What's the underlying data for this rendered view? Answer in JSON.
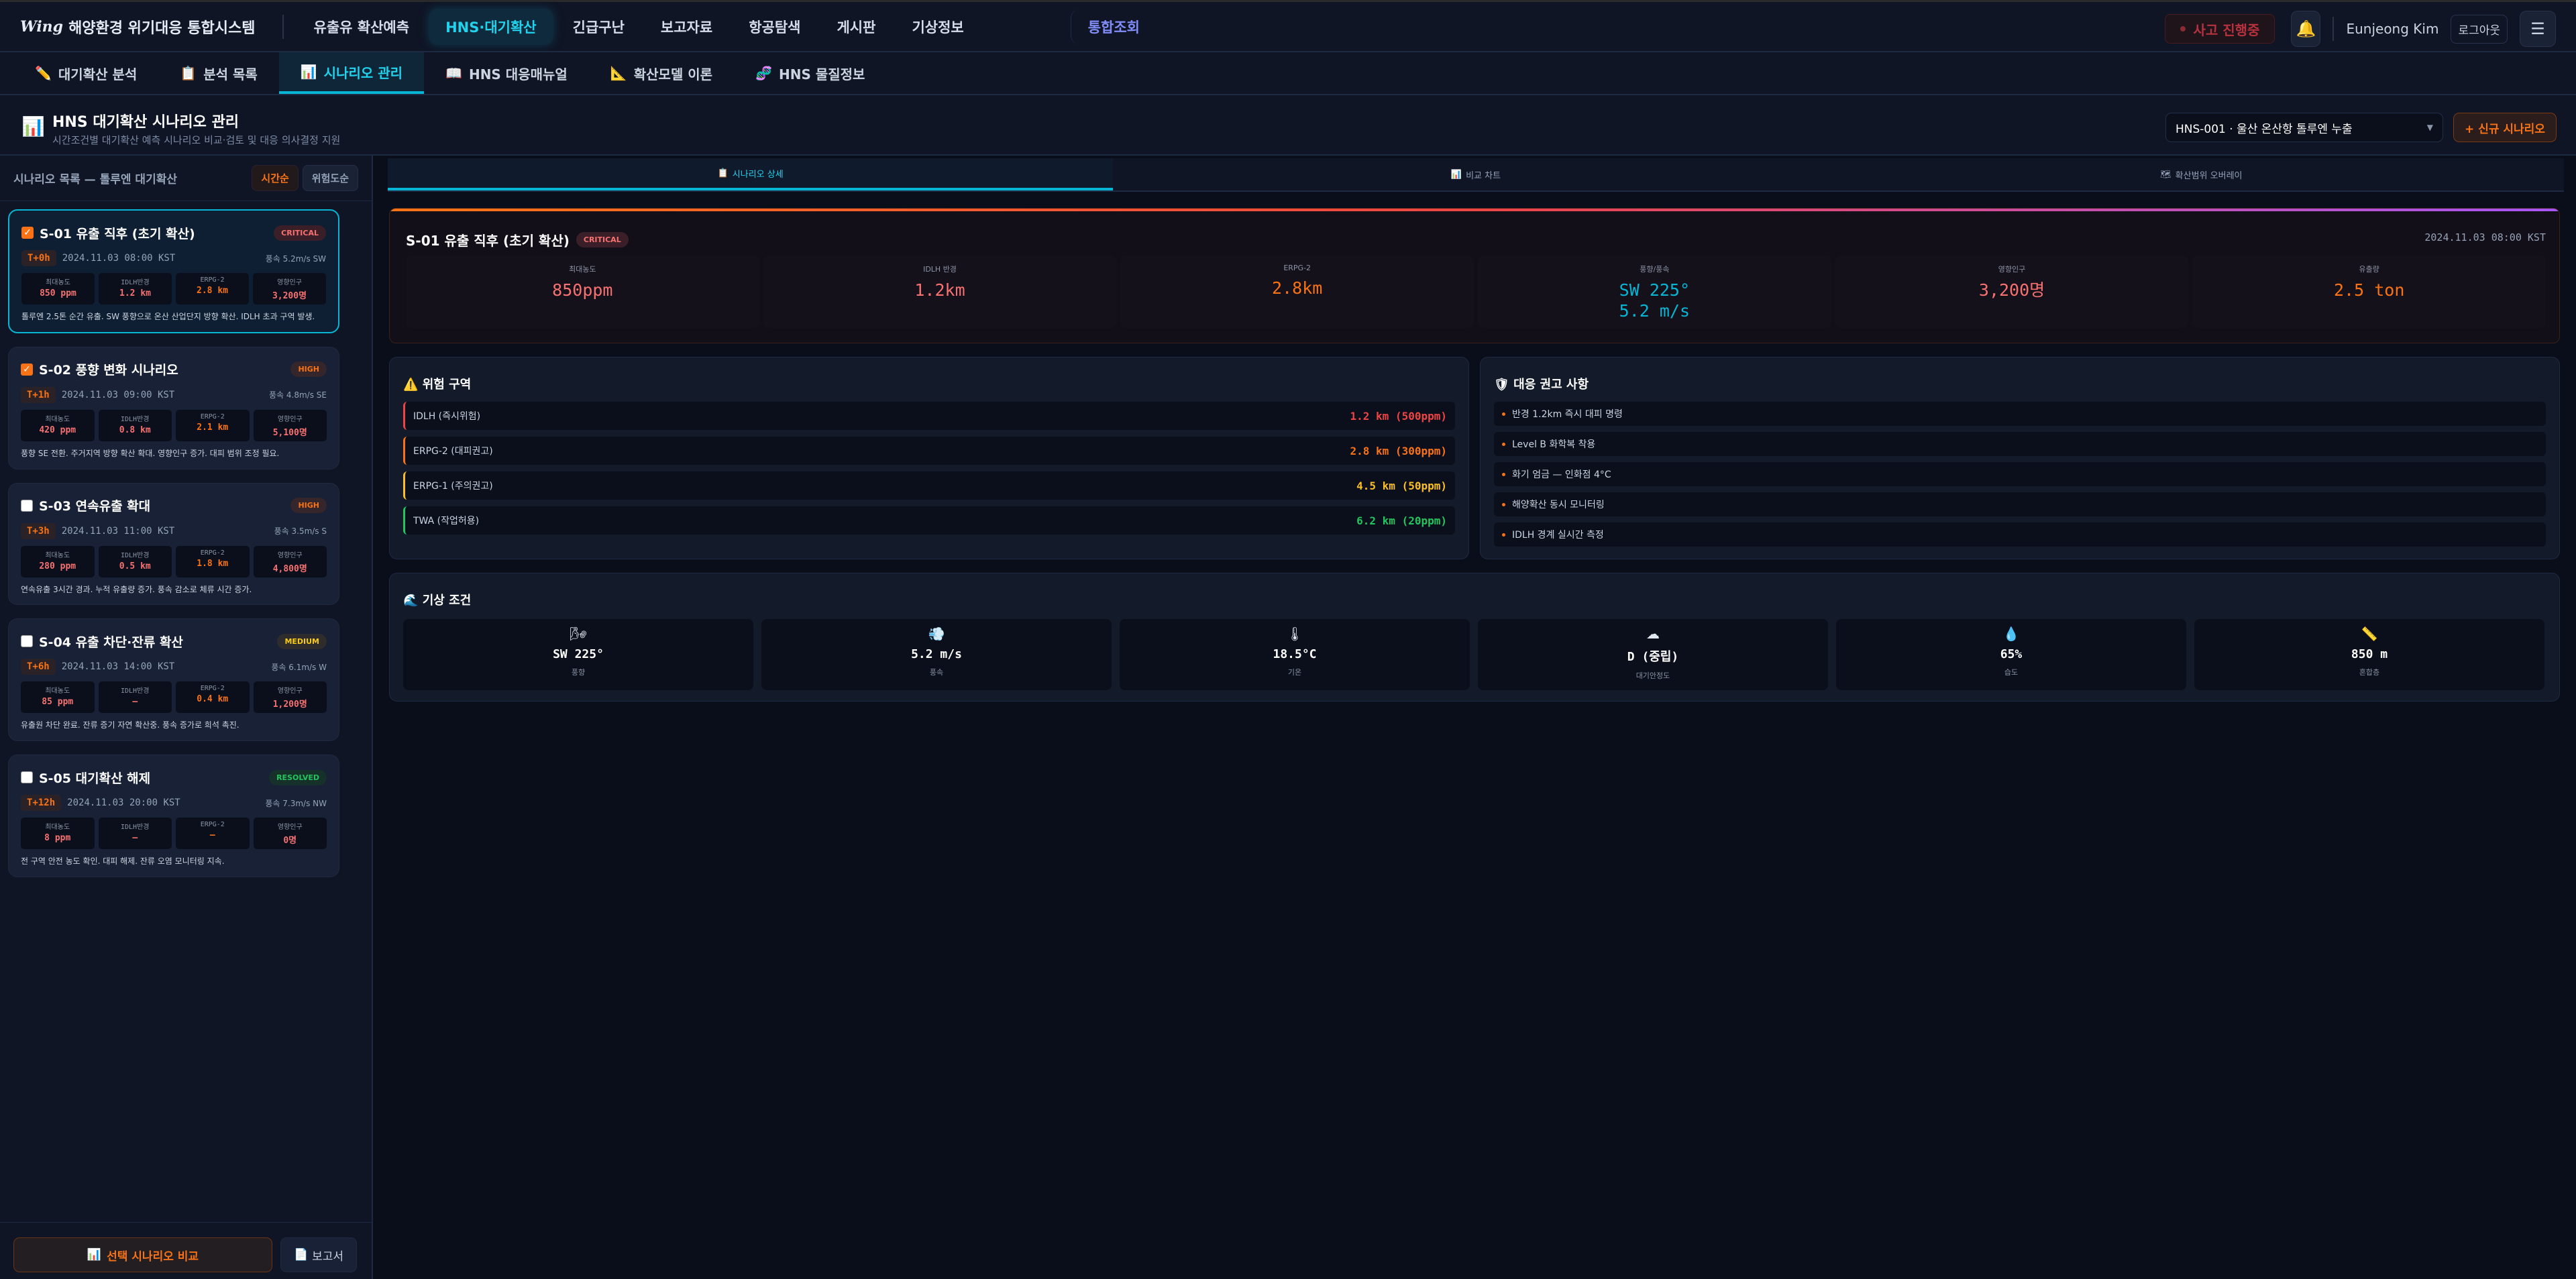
{
  "header": {
    "logo_mark": "Wing",
    "title": "해양환경 위기대응 통합시스템",
    "nav": [
      "유출유 확산예측",
      "HNS·대기확산",
      "긴급구난",
      "보고자료",
      "항공탐색",
      "게시판",
      "기상정보",
      "통합조회"
    ],
    "active_nav": "HNS·대기확산",
    "incident_label": "사고 진행중",
    "user_name": "Eunjeong Kim",
    "logout_label": "로그아웃"
  },
  "subnav": [
    {
      "icon": "✏️",
      "label": "대기확산 분석"
    },
    {
      "icon": "📋",
      "label": "분석 목록"
    },
    {
      "icon": "📊",
      "label": "시나리오 관리"
    },
    {
      "icon": "📖",
      "label": "HNS 대응매뉴얼"
    },
    {
      "icon": "📐",
      "label": "확산모델 이론"
    },
    {
      "icon": "🧬",
      "label": "HNS 물질정보"
    }
  ],
  "page": {
    "title": "HNS 대기확산 시나리오 관리",
    "subtitle": "시간조건별 대기확산 예측 시나리오 비교·검토 및 대응 의사결정 지원",
    "incident_select": "HNS-001 · 울산 온산항 톨루엔 누출",
    "new_scenario_label": "+ 신규 시나리오"
  },
  "sidebar": {
    "title": "시나리오 목록 — 톨루엔 대기확산",
    "sort_time": "시간순",
    "sort_risk": "위험도순",
    "metric_labels": [
      "최대농도",
      "IDLH반경",
      "ERPG-2",
      "영향인구"
    ],
    "scenarios": [
      {
        "checked": true,
        "selected": true,
        "title": "S-01 유출 직후 (초기 확산)",
        "badge": "CRITICAL",
        "time_offset": "T+0h",
        "datetime": "2024.11.03 08:00 KST",
        "wind": "풍속 5.2m/s SW",
        "values": [
          "850 ppm",
          "1.2 km",
          "2.8 km",
          "3,200명"
        ],
        "desc": "톨루엔 2.5톤 순간 유출. SW 풍향으로 온산 산업단지 방향 확산. IDLH 초과 구역 발생."
      },
      {
        "checked": true,
        "selected": false,
        "title": "S-02 풍향 변화 시나리오",
        "badge": "HIGH",
        "time_offset": "T+1h",
        "datetime": "2024.11.03 09:00 KST",
        "wind": "풍속 4.8m/s SE",
        "values": [
          "420 ppm",
          "0.8 km",
          "2.1 km",
          "5,100명"
        ],
        "desc": "풍향 SE 전환. 주거지역 방향 확산 확대. 영향인구 증가. 대피 범위 조정 필요."
      },
      {
        "checked": false,
        "selected": false,
        "title": "S-03 연속유출 확대",
        "badge": "HIGH",
        "time_offset": "T+3h",
        "datetime": "2024.11.03 11:00 KST",
        "wind": "풍속 3.5m/s S",
        "values": [
          "280 ppm",
          "0.5 km",
          "1.8 km",
          "4,800명"
        ],
        "desc": "연속유출 3시간 경과. 누적 유출량 증가. 풍속 감소로 체류 시간 증가."
      },
      {
        "checked": false,
        "selected": false,
        "title": "S-04 유출 차단·잔류 확산",
        "badge": "MEDIUM",
        "time_offset": "T+6h",
        "datetime": "2024.11.03 14:00 KST",
        "wind": "풍속 6.1m/s W",
        "values": [
          "85 ppm",
          "—",
          "0.4 km",
          "1,200명"
        ],
        "desc": "유출원 차단 완료. 잔류 증기 자연 확산중. 풍속 증가로 희석 촉진."
      },
      {
        "checked": false,
        "selected": false,
        "title": "S-05 대기확산 해제",
        "badge": "RESOLVED",
        "time_offset": "T+12h",
        "datetime": "2024.11.03 20:00 KST",
        "wind": "풍속 7.3m/s NW",
        "values": [
          "8 ppm",
          "—",
          "—",
          "0명"
        ],
        "desc": "전 구역 안전 농도 확인. 대피 해제. 잔류 오염 모니터링 지속."
      }
    ],
    "compare_label": "선택 시나리오 비교",
    "report_label": "보고서"
  },
  "badge_colors": {
    "CRITICAL": {
      "fg": "#f87171",
      "bg": "#3a1f28"
    },
    "HIGH": {
      "fg": "#f97316",
      "bg": "#34262a"
    },
    "MEDIUM": {
      "fg": "#facc15",
      "bg": "#2e2c2c"
    },
    "RESOLVED": {
      "fg": "#22c55e",
      "bg": "#16302a"
    }
  },
  "tabs": [
    {
      "icon": "📋",
      "label": "시나리오 상세"
    },
    {
      "icon": "📊",
      "label": "비교 차트"
    },
    {
      "icon": "🗺",
      "label": "확산범위 오버레이"
    }
  ],
  "detail": {
    "title": "S-01 유출 직후 (초기 확산)",
    "badge": "CRITICAL",
    "datetime": "2024.11.03 08:00 KST",
    "stats": [
      {
        "label": "최대농도",
        "value": "850ppm",
        "color": "#f87171"
      },
      {
        "label": "IDLH 반경",
        "value": "1.2km",
        "color": "#f87171"
      },
      {
        "label": "ERPG-2",
        "value": "2.8km",
        "color": "#f97316"
      },
      {
        "label": "풍향/풍속",
        "value": "SW 225°",
        "value2": "5.2 m/s",
        "color": "#06b6d4"
      },
      {
        "label": "영향인구",
        "value": "3,200명",
        "color": "#f87171"
      },
      {
        "label": "유출량",
        "value": "2.5 ton",
        "color": "#f97316"
      }
    ]
  },
  "hazard": {
    "title": "위험 구역",
    "zones": [
      {
        "label": "IDLH (즉시위험)",
        "value": "1.2 km (500ppm)",
        "color": "#ef4444"
      },
      {
        "label": "ERPG-2 (대피권고)",
        "value": "2.8 km (300ppm)",
        "color": "#f97316"
      },
      {
        "label": "ERPG-1 (주의권고)",
        "value": "4.5 km (50ppm)",
        "color": "#fbbf24"
      },
      {
        "label": "TWA (작업허용)",
        "value": "6.2 km (20ppm)",
        "color": "#22c55e"
      }
    ]
  },
  "recommendations": {
    "title": "대응 권고 사항",
    "items": [
      "반경 1.2km 즉시 대피 명령",
      "Level B 화학복 착용",
      "화기 엄금 — 인화점 4°C",
      "해양확산 동시 모니터링",
      "IDLH 경계 실시간 측정"
    ]
  },
  "weather": {
    "title": "기상 조건",
    "items": [
      {
        "icon": "🌬",
        "value": "SW 225°",
        "label": "풍향"
      },
      {
        "icon": "💨",
        "value": "5.2 m/s",
        "label": "풍속"
      },
      {
        "icon": "🌡",
        "value": "18.5°C",
        "label": "기온"
      },
      {
        "icon": "☁",
        "value": "D (중립)",
        "label": "대기안정도"
      },
      {
        "icon": "💧",
        "value": "65%",
        "label": "습도"
      },
      {
        "icon": "📏",
        "value": "850 m",
        "label": "혼합층"
      }
    ]
  }
}
